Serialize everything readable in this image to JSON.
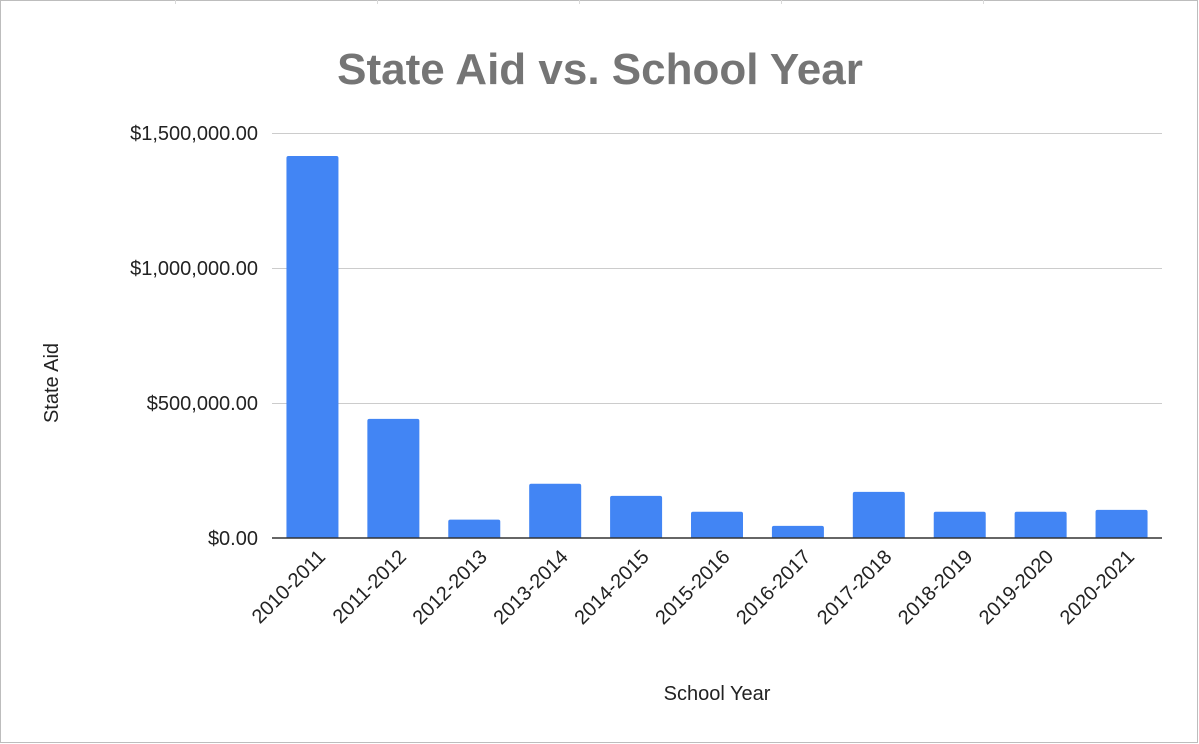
{
  "chart_data": {
    "type": "bar",
    "title": "State Aid vs. School Year",
    "xlabel": "School Year",
    "ylabel": "State Aid",
    "categories": [
      "2010-2011",
      "2011-2012",
      "2012-2013",
      "2013-2014",
      "2014-2015",
      "2015-2016",
      "2016-2017",
      "2017-2018",
      "2018-2019",
      "2019-2020",
      "2020-2021"
    ],
    "values": [
      1415000,
      441000,
      68000,
      201000,
      156000,
      97000,
      45000,
      171000,
      97000,
      97000,
      104000
    ],
    "yticks": [
      0,
      500000,
      1000000,
      1500000
    ],
    "ytick_labels": [
      "$0.00",
      "$500,000.00",
      "$1,000,000.00",
      "$1,500,000.00"
    ],
    "ylim": [
      0,
      1500000
    ],
    "bar_color": "#4285f4",
    "grid": true,
    "legend": "none"
  }
}
